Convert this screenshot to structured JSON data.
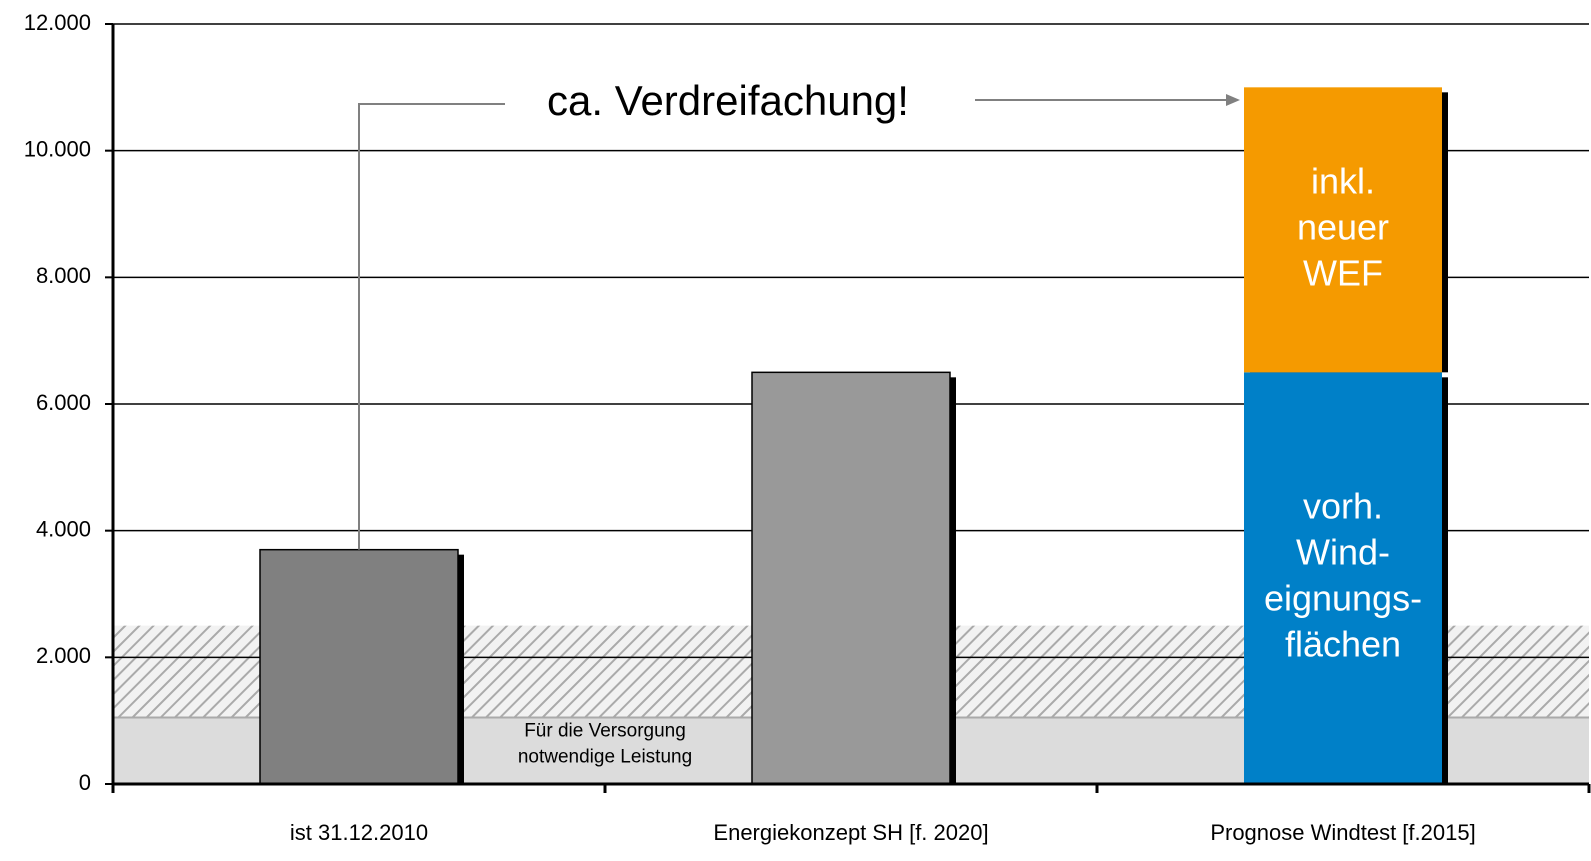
{
  "chart_data": {
    "type": "bar",
    "stacked": true,
    "categories": [
      "ist 31.12.2010",
      "Energiekonzept SH [f. 2020]",
      "Prognose Windtest [f.2015]"
    ],
    "series": [
      {
        "colors": [
          "#808080",
          "#999999",
          "#0080c8"
        ],
        "values": [
          3700,
          6500,
          6500
        ],
        "inside_label": [
          "vorh.",
          "Wind-",
          "eignungs-",
          "flächen"
        ]
      },
      {
        "colors": [
          null,
          null,
          "#f59a00"
        ],
        "values": [
          null,
          null,
          4500
        ],
        "inside_label": [
          "inkl.",
          "neuer",
          "WEF"
        ]
      }
    ],
    "ylim": [
      0,
      12000
    ],
    "yticks": [
      0,
      {
        "value": 2000,
        "label": "2.000"
      },
      {
        "value": 4000,
        "label": "4.000"
      },
      {
        "value": 6000,
        "label": "6.000"
      },
      {
        "value": 8000,
        "label": "8.000"
      },
      {
        "value": 10000,
        "label": "10.000"
      },
      {
        "value": 12000,
        "label": "12.000"
      }
    ],
    "grid": true,
    "bands": [
      {
        "range": [
          0,
          1050
        ],
        "color": "#dcdcdc",
        "label": [
          "Für die Versorgung",
          "notwendige Leistung"
        ]
      },
      {
        "range": [
          1050,
          2500
        ],
        "color": "#dcdcdc",
        "hatched": true
      }
    ],
    "annotation": "ca. Verdreifachung!"
  }
}
